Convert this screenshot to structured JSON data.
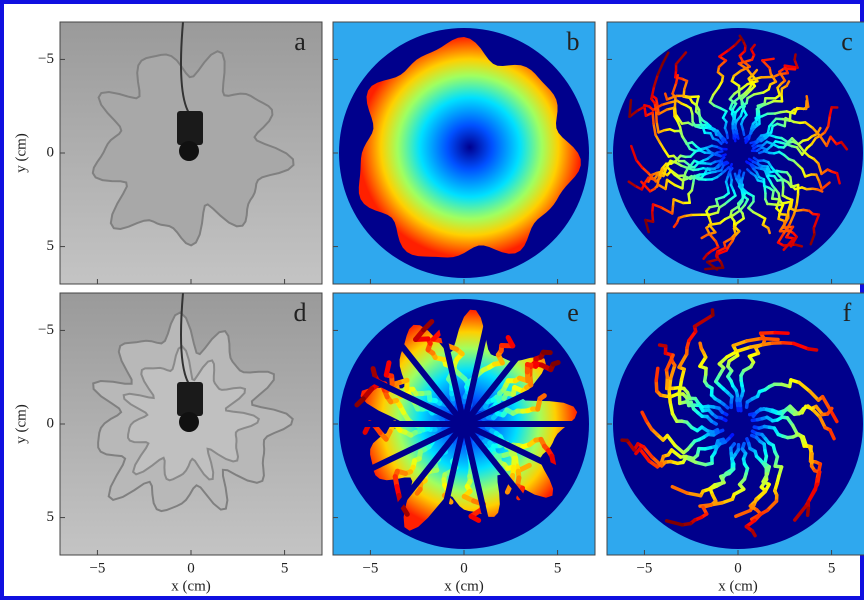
{
  "figure": {
    "panels": [
      {
        "label": "a"
      },
      {
        "label": "b"
      },
      {
        "label": "c"
      },
      {
        "label": "d"
      },
      {
        "label": "e"
      },
      {
        "label": "f"
      }
    ],
    "xlabel": "x (cm)",
    "ylabel": "y (cm)",
    "xlim": [
      -7,
      7
    ],
    "ylim": [
      -7,
      7
    ],
    "xticks": [
      {
        "value": -5,
        "label": "−5"
      },
      0,
      5
    ],
    "yticks": [
      {
        "value": -5,
        "label": "−5"
      },
      0,
      5
    ]
  }
}
